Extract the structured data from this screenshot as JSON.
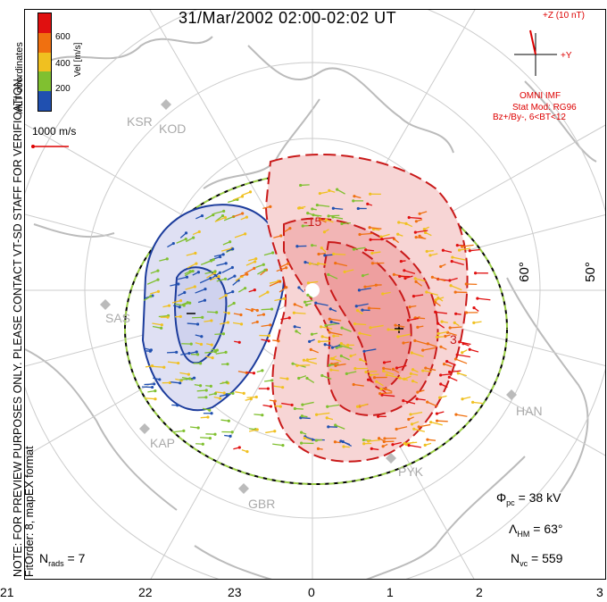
{
  "title": "31/Mar/2002 02:00-02:02 UT",
  "side_note": "NOTE: FOR PREVIEW PURPOSES ONLY. PLEASE CONTACT VT-SD STAFF FOR VERIFICATION.",
  "fit_order": "FitOrder: 8, mapEX format",
  "coords_label": "MLT coordinates",
  "colorbar": {
    "title": "Vel [m/s]",
    "ticks": [
      "600",
      "400",
      "200"
    ],
    "colors": [
      "#e01010",
      "#f07010",
      "#f0c020",
      "#80c030",
      "#2050b0"
    ]
  },
  "vector_scale": "1000 m/s",
  "imf": {
    "z_label": "+Z (10 nT)",
    "y_label": "+Y",
    "source": "OMNI IMF",
    "stat_mod": "Stat Mod: RG96",
    "condition": "Bz+/By-, 6<BT<12"
  },
  "stats": {
    "phi_pc_sym": "Φ",
    "phi_pc_sub": "pc",
    "phi_pc_val": "= 38 kV",
    "lambda_sym": "Λ",
    "lambda_sub": "HM",
    "lambda_val": "= 63°",
    "nvc_sym": "N",
    "nvc_sub": "vc",
    "nvc_val": "= 559",
    "nrads_sym": "N",
    "nrads_sub": "rads",
    "nrads_val": "= 7"
  },
  "mlt_axis": [
    "21",
    "22",
    "23",
    "0",
    "1",
    "2",
    "3"
  ],
  "lat_labels": [
    "60°",
    "50°"
  ],
  "stations": [
    "KSR",
    "KOD",
    "SAS",
    "KAP",
    "GBR",
    "PYK",
    "HAN"
  ],
  "contour_labels": [
    "-15",
    "3"
  ]
}
